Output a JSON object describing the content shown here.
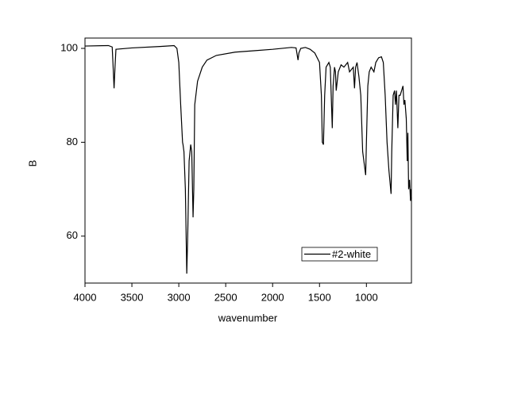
{
  "chart_data": {
    "type": "line",
    "x_label": "wavenumber",
    "y_label": "B",
    "xlim": [
      4000,
      520
    ],
    "ylim": [
      50,
      102.2
    ],
    "xticks": [
      4000,
      3500,
      3000,
      2500,
      2000,
      1500,
      1000
    ],
    "yticks": [
      60,
      80,
      100
    ],
    "legend": "lower right",
    "x": [
      4000,
      3750,
      3710,
      3700,
      3690,
      3680,
      3670,
      3500,
      3200,
      3050,
      3020,
      3000,
      2980,
      2960,
      2955,
      2945,
      2930,
      2915,
      2905,
      2890,
      2873,
      2862,
      2848,
      2840,
      2830,
      2800,
      2750,
      2700,
      2600,
      2400,
      2200,
      2000,
      1800,
      1750,
      1729,
      1720,
      1700,
      1650,
      1600,
      1550,
      1500,
      1480,
      1470,
      1458,
      1445,
      1430,
      1400,
      1385,
      1364,
      1355,
      1340,
      1330,
      1322,
      1300,
      1270,
      1240,
      1200,
      1180,
      1140,
      1127,
      1115,
      1100,
      1080,
      1060,
      1040,
      1008,
      1000,
      985,
      970,
      950,
      920,
      900,
      870,
      840,
      820,
      800,
      780,
      760,
      737,
      730,
      715,
      700,
      690,
      680,
      665,
      653,
      640,
      625,
      610,
      600,
      590,
      575,
      565,
      558,
      550,
      540,
      530,
      525,
      520
    ],
    "series": [
      {
        "name": "#2-white",
        "color": "#000000",
        "values": [
          100.5,
          100.6,
          100.3,
          96,
          91.5,
          96,
          99.8,
          100.1,
          100.4,
          100.6,
          100,
          97,
          88,
          80,
          79.5,
          78,
          70,
          52,
          60,
          76,
          79.5,
          78,
          64,
          70,
          88,
          93,
          96,
          97.5,
          98.5,
          99.2,
          99.5,
          99.8,
          100.2,
          100.1,
          97.5,
          99,
          100,
          100.2,
          99.8,
          99,
          97,
          90,
          80,
          79.5,
          90,
          96,
          97,
          96,
          83,
          92,
          96,
          95,
          91,
          95,
          96.5,
          96,
          97,
          95,
          96,
          91.5,
          96,
          97,
          94,
          90,
          78,
          73,
          80,
          92,
          95,
          96,
          95,
          97,
          98,
          98.2,
          97,
          90,
          80,
          74,
          69,
          78,
          90,
          91,
          88,
          91,
          83,
          90,
          90,
          91,
          92,
          88,
          89,
          85,
          76,
          82,
          70,
          72,
          67.5,
          70,
          68
        ]
      }
    ]
  }
}
